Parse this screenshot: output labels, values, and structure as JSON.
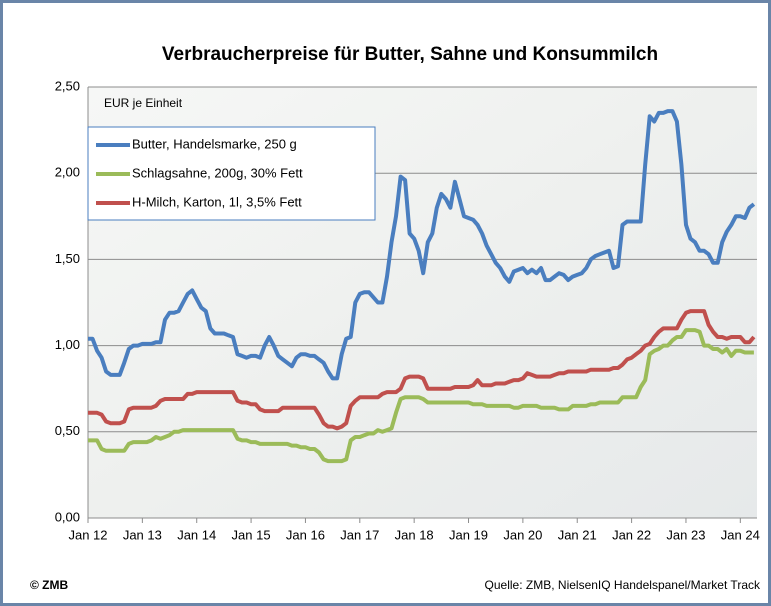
{
  "chart_data": {
    "type": "line",
    "title": "Verbraucherpreise für Butter, Sahne und Konsummilch",
    "unit_label": "EUR je Einheit",
    "copyright": "© ZMB",
    "source": "Quelle: ZMB, NielsenIQ Handelspanel/Market Track",
    "legend": "upper left",
    "grid": true,
    "categories": [
      "Jan 12",
      null,
      null,
      null,
      null,
      null,
      null,
      null,
      null,
      null,
      null,
      null,
      "Jan 13",
      null,
      null,
      null,
      null,
      null,
      null,
      null,
      null,
      null,
      null,
      null,
      "Jan 14",
      null,
      null,
      null,
      null,
      null,
      null,
      null,
      null,
      null,
      null,
      null,
      "Jan 15",
      null,
      null,
      null,
      null,
      null,
      null,
      null,
      null,
      null,
      null,
      null,
      "Jan 16",
      null,
      null,
      null,
      null,
      null,
      null,
      null,
      null,
      null,
      null,
      null,
      "Jan 17",
      null,
      null,
      null,
      null,
      null,
      null,
      null,
      null,
      null,
      null,
      null,
      "Jan 18",
      null,
      null,
      null,
      null,
      null,
      null,
      null,
      null,
      null,
      null,
      null,
      "Jan 19",
      null,
      null,
      null,
      null,
      null,
      null,
      null,
      null,
      null,
      null,
      null,
      "Jan 20",
      null,
      null,
      null,
      null,
      null,
      null,
      null,
      null,
      null,
      null,
      null,
      "Jan 21",
      null,
      null,
      null,
      null,
      null,
      null,
      null,
      null,
      null,
      null,
      null,
      "Jan 22",
      null,
      null,
      null,
      null,
      null,
      null,
      null,
      null,
      null,
      null,
      null,
      "Jan 23",
      null,
      null,
      null,
      null,
      null,
      null,
      null,
      null,
      null,
      null,
      null,
      "Jan 24",
      null,
      null,
      null
    ],
    "ylim": [
      0,
      2.5
    ],
    "yticks": [
      {
        "value": 0,
        "label": "0,00"
      },
      {
        "value": 0.5,
        "label": "0,50"
      },
      {
        "value": 1,
        "label": "1,00"
      },
      {
        "value": 1.5,
        "label": "1,50"
      },
      {
        "value": 2,
        "label": "2,00"
      },
      {
        "value": 2.5,
        "label": "2,50"
      }
    ],
    "series": [
      {
        "name": "Butter, Handelsmarke, 250 g",
        "color": "#4a7ebf",
        "values": [
          1.04,
          1.04,
          0.97,
          0.93,
          0.85,
          0.83,
          0.83,
          0.83,
          0.9,
          0.98,
          1.0,
          1.0,
          1.01,
          1.01,
          1.01,
          1.02,
          1.02,
          1.15,
          1.19,
          1.19,
          1.2,
          1.25,
          1.3,
          1.32,
          1.27,
          1.22,
          1.2,
          1.1,
          1.07,
          1.07,
          1.07,
          1.06,
          1.05,
          0.95,
          0.94,
          0.93,
          0.94,
          0.94,
          0.93,
          1.0,
          1.05,
          1.0,
          0.94,
          0.92,
          0.9,
          0.88,
          0.93,
          0.95,
          0.95,
          0.94,
          0.94,
          0.92,
          0.9,
          0.85,
          0.81,
          0.81,
          0.95,
          1.04,
          1.05,
          1.25,
          1.3,
          1.31,
          1.31,
          1.28,
          1.25,
          1.25,
          1.4,
          1.6,
          1.75,
          1.98,
          1.96,
          1.65,
          1.62,
          1.55,
          1.42,
          1.6,
          1.65,
          1.8,
          1.88,
          1.85,
          1.8,
          1.95,
          1.85,
          1.75,
          1.74,
          1.73,
          1.7,
          1.65,
          1.58,
          1.53,
          1.48,
          1.45,
          1.4,
          1.37,
          1.43,
          1.44,
          1.45,
          1.42,
          1.44,
          1.42,
          1.45,
          1.38,
          1.38,
          1.4,
          1.42,
          1.41,
          1.38,
          1.4,
          1.41,
          1.42,
          1.45,
          1.5,
          1.52,
          1.53,
          1.54,
          1.55,
          1.45,
          1.46,
          1.7,
          1.72,
          1.72,
          1.72,
          1.72,
          2.05,
          2.33,
          2.3,
          2.35,
          2.35,
          2.36,
          2.36,
          2.3,
          2.05,
          1.7,
          1.62,
          1.6,
          1.55,
          1.55,
          1.53,
          1.48,
          1.48,
          1.6,
          1.66,
          1.7,
          1.75,
          1.75,
          1.74,
          1.8,
          1.82
        ]
      },
      {
        "name": "Schlagsahne, 200g, 30% Fett",
        "color": "#9bbb59",
        "values": [
          0.45,
          0.45,
          0.45,
          0.4,
          0.39,
          0.39,
          0.39,
          0.39,
          0.39,
          0.43,
          0.44,
          0.44,
          0.44,
          0.44,
          0.45,
          0.47,
          0.46,
          0.47,
          0.48,
          0.5,
          0.5,
          0.51,
          0.51,
          0.51,
          0.51,
          0.51,
          0.51,
          0.51,
          0.51,
          0.51,
          0.51,
          0.51,
          0.51,
          0.46,
          0.45,
          0.45,
          0.44,
          0.44,
          0.43,
          0.43,
          0.43,
          0.43,
          0.43,
          0.43,
          0.43,
          0.42,
          0.42,
          0.41,
          0.41,
          0.4,
          0.4,
          0.38,
          0.34,
          0.33,
          0.33,
          0.33,
          0.33,
          0.34,
          0.45,
          0.47,
          0.47,
          0.48,
          0.49,
          0.49,
          0.51,
          0.5,
          0.51,
          0.52,
          0.61,
          0.69,
          0.7,
          0.7,
          0.7,
          0.7,
          0.69,
          0.67,
          0.67,
          0.67,
          0.67,
          0.67,
          0.67,
          0.67,
          0.67,
          0.67,
          0.67,
          0.66,
          0.66,
          0.66,
          0.65,
          0.65,
          0.65,
          0.65,
          0.65,
          0.65,
          0.64,
          0.64,
          0.65,
          0.65,
          0.65,
          0.65,
          0.64,
          0.64,
          0.64,
          0.64,
          0.63,
          0.63,
          0.63,
          0.65,
          0.65,
          0.65,
          0.65,
          0.66,
          0.66,
          0.67,
          0.67,
          0.67,
          0.67,
          0.67,
          0.7,
          0.7,
          0.7,
          0.7,
          0.76,
          0.8,
          0.95,
          0.97,
          0.98,
          1.0,
          1.0,
          1.03,
          1.05,
          1.05,
          1.09,
          1.09,
          1.09,
          1.08,
          1.0,
          1.0,
          0.98,
          0.98,
          0.96,
          0.98,
          0.94,
          0.97,
          0.97,
          0.96,
          0.96,
          0.96
        ]
      },
      {
        "name": "H-Milch, Karton, 1l, 3,5% Fett",
        "color": "#c0504d",
        "values": [
          0.61,
          0.61,
          0.61,
          0.6,
          0.56,
          0.55,
          0.55,
          0.55,
          0.56,
          0.63,
          0.64,
          0.64,
          0.64,
          0.64,
          0.64,
          0.65,
          0.68,
          0.69,
          0.69,
          0.69,
          0.69,
          0.69,
          0.72,
          0.72,
          0.73,
          0.73,
          0.73,
          0.73,
          0.73,
          0.73,
          0.73,
          0.73,
          0.73,
          0.68,
          0.67,
          0.67,
          0.66,
          0.66,
          0.63,
          0.62,
          0.62,
          0.62,
          0.62,
          0.64,
          0.64,
          0.64,
          0.64,
          0.64,
          0.64,
          0.64,
          0.64,
          0.6,
          0.55,
          0.53,
          0.53,
          0.52,
          0.53,
          0.55,
          0.65,
          0.68,
          0.7,
          0.7,
          0.7,
          0.7,
          0.7,
          0.72,
          0.73,
          0.73,
          0.73,
          0.75,
          0.81,
          0.82,
          0.82,
          0.82,
          0.81,
          0.75,
          0.75,
          0.75,
          0.75,
          0.75,
          0.75,
          0.76,
          0.76,
          0.76,
          0.76,
          0.77,
          0.8,
          0.77,
          0.77,
          0.77,
          0.78,
          0.78,
          0.78,
          0.79,
          0.8,
          0.8,
          0.81,
          0.84,
          0.83,
          0.82,
          0.82,
          0.82,
          0.82,
          0.83,
          0.84,
          0.84,
          0.85,
          0.85,
          0.85,
          0.85,
          0.85,
          0.86,
          0.86,
          0.86,
          0.86,
          0.86,
          0.87,
          0.87,
          0.89,
          0.92,
          0.93,
          0.95,
          0.97,
          1.0,
          1.01,
          1.05,
          1.08,
          1.1,
          1.1,
          1.1,
          1.1,
          1.15,
          1.19,
          1.2,
          1.2,
          1.2,
          1.2,
          1.12,
          1.08,
          1.05,
          1.05,
          1.04,
          1.05,
          1.05,
          1.05,
          1.02,
          1.02,
          1.05
        ]
      }
    ]
  }
}
